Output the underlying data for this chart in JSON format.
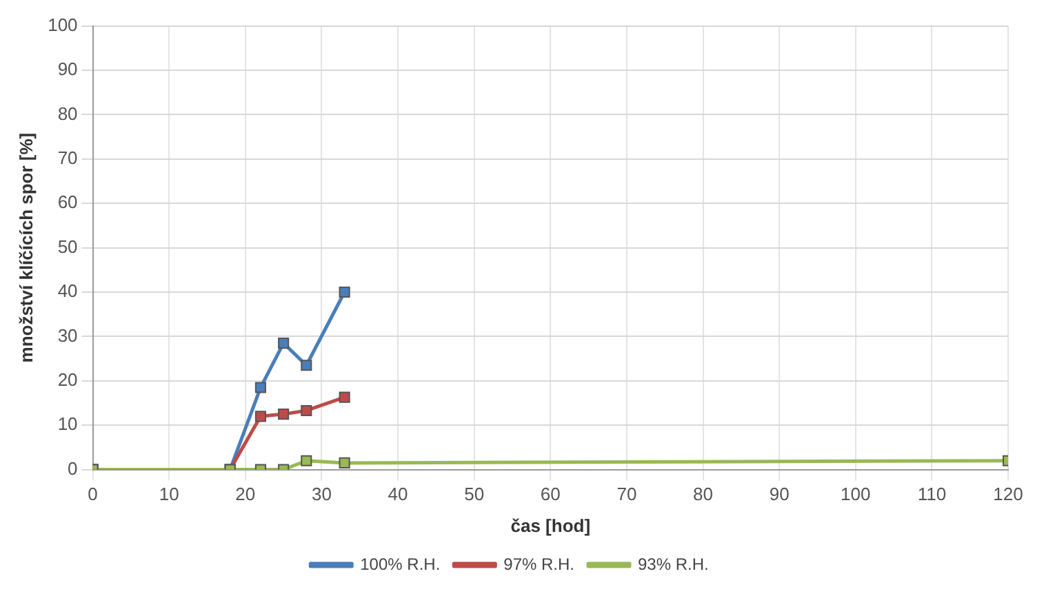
{
  "chart_data": {
    "type": "line",
    "xlabel": "čas [hod]",
    "ylabel": "množství klíčících spor [%]",
    "xlim": [
      0,
      120
    ],
    "xticks": [
      0,
      10,
      20,
      30,
      40,
      50,
      60,
      70,
      80,
      90,
      100,
      110,
      120
    ],
    "ylim": [
      0,
      100
    ],
    "yticks": [
      0,
      10,
      20,
      30,
      40,
      50,
      60,
      70,
      80,
      90,
      100
    ],
    "grid": true,
    "legend": "bottom",
    "marker": "square",
    "line_style": "solid",
    "series": [
      {
        "name": "100% R.H.",
        "color": "#4a7ebb",
        "x": [
          0,
          18,
          22,
          25,
          28,
          33
        ],
        "values": [
          0,
          0,
          18.5,
          28.5,
          23.5,
          40
        ]
      },
      {
        "name": "97% R.H.",
        "color": "#be4b48",
        "x": [
          0,
          18,
          22,
          25,
          28,
          33
        ],
        "values": [
          0,
          0,
          12,
          12.5,
          13.3,
          16.3
        ]
      },
      {
        "name": "93% R.H.",
        "color": "#98b954",
        "x": [
          0,
          18,
          22,
          25,
          28,
          33,
          120
        ],
        "values": [
          0,
          0,
          0,
          0,
          2,
          1.5,
          2
        ]
      }
    ]
  }
}
